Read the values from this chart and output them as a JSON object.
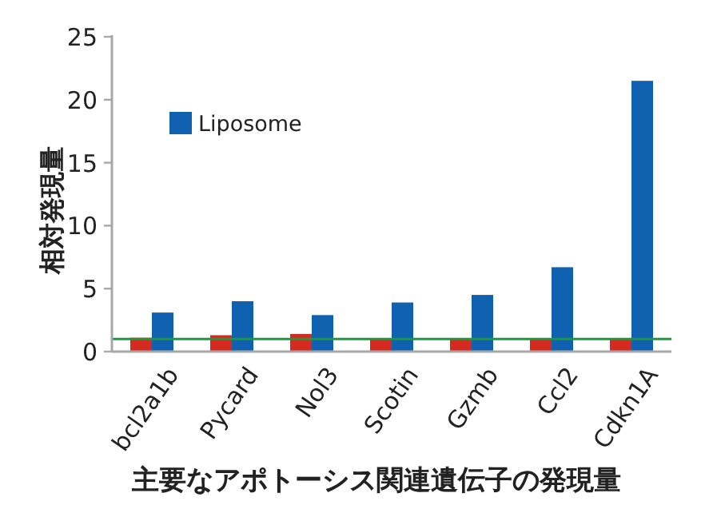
{
  "chart_data": {
    "type": "bar",
    "title": "主要なアポトーシス関連遺伝子の発現量",
    "ylabel": "相対発現量",
    "categories": [
      "bcl2a1b",
      "Pycard",
      "Nol3",
      "Scotin",
      "Gzmb",
      "Ccl2",
      "Cdkn1A"
    ],
    "series": [
      {
        "color": "#d42a20",
        "values": [
          1.1,
          1.3,
          1.4,
          1.0,
          1.0,
          1.0,
          1.0
        ]
      },
      {
        "name": "Liposome",
        "color": "#1062b0",
        "values": [
          3.1,
          4.0,
          2.9,
          3.9,
          4.5,
          6.7,
          21.5
        ]
      }
    ],
    "ylim": [
      0,
      25
    ],
    "yticks": [
      0,
      5,
      10,
      15,
      20,
      25
    ],
    "grid": false,
    "legend": "top left",
    "ref_lines": [
      {
        "axis": "y",
        "value": 1.0,
        "color": "#1a9a3a",
        "line_style": "solid"
      }
    ]
  }
}
